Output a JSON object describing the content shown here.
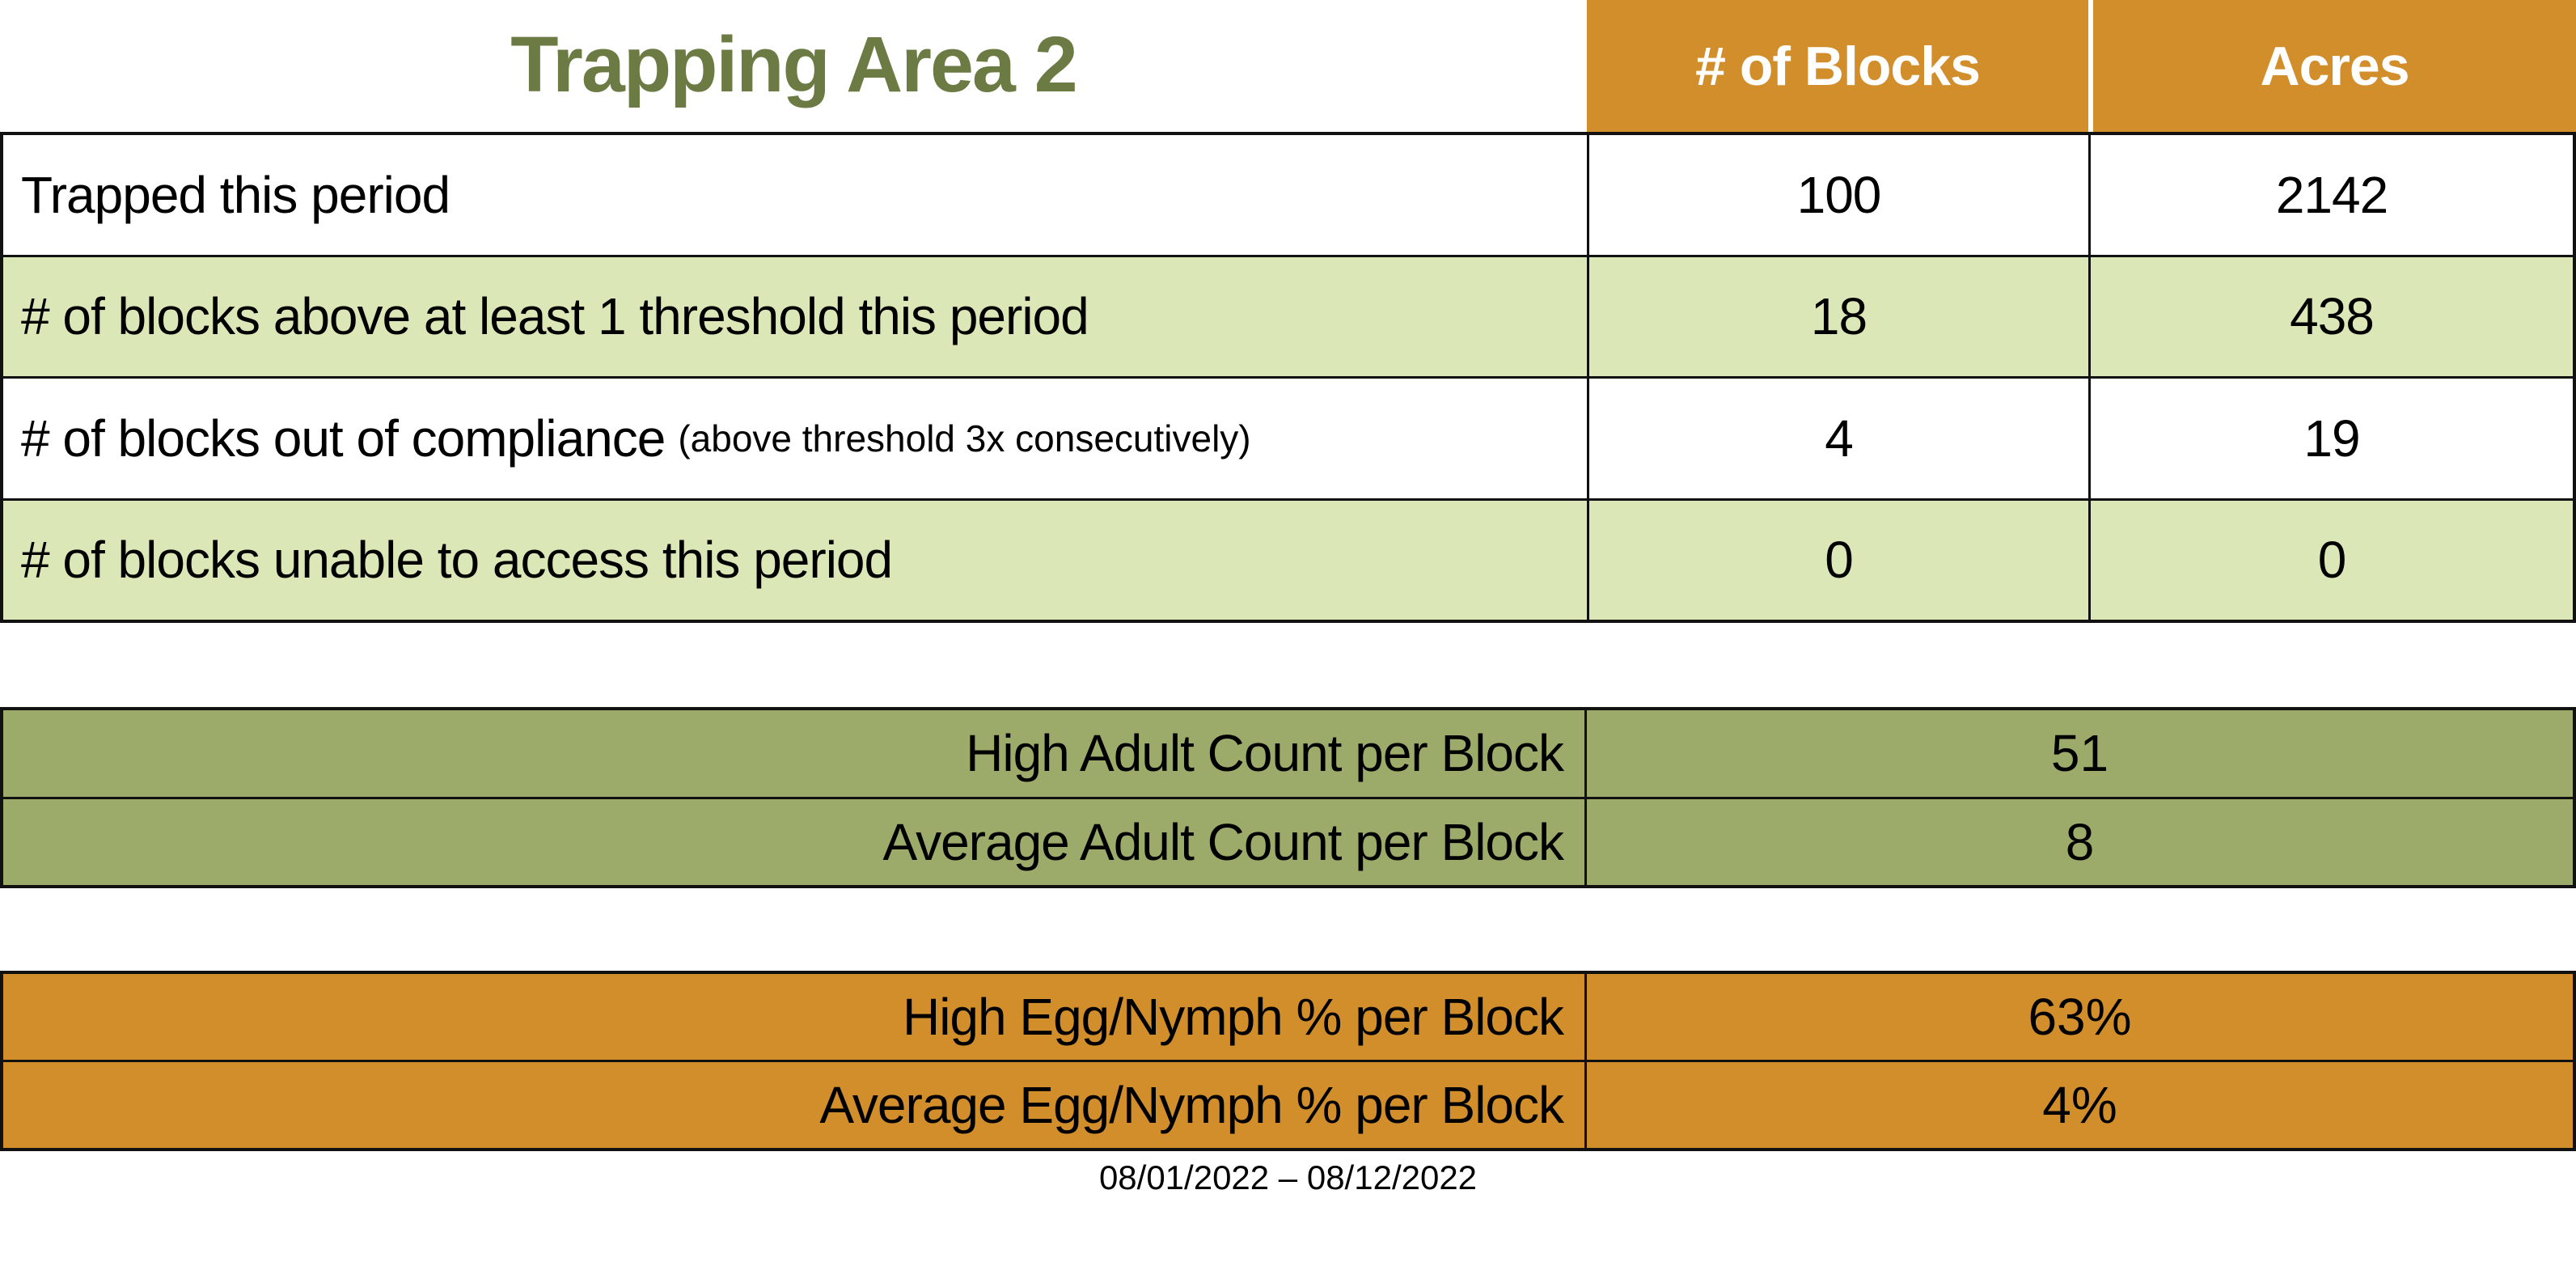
{
  "title": "Trapping Area 2",
  "header": {
    "col_blocks": "# of Blocks",
    "col_acres": "Acres"
  },
  "main_table": {
    "rows": [
      {
        "label": "Trapped this period",
        "note": "",
        "blocks": "100",
        "acres": "2142"
      },
      {
        "label": "# of blocks above at least 1 threshold this period",
        "note": "",
        "blocks": "18",
        "acres": "438"
      },
      {
        "label": "# of blocks out of compliance",
        "note": "(above threshold 3x consecutively)",
        "blocks": "4",
        "acres": "19"
      },
      {
        "label": "# of blocks unable to access this period",
        "note": "",
        "blocks": "0",
        "acres": "0"
      }
    ]
  },
  "adult_section": {
    "rows": [
      {
        "label": "High Adult Count per Block",
        "value": "51"
      },
      {
        "label": "Average Adult Count per Block",
        "value": "8"
      }
    ]
  },
  "egg_section": {
    "rows": [
      {
        "label": "High Egg/Nymph % per Block",
        "value": "63%"
      },
      {
        "label": "Average Egg/Nymph % per Block",
        "value": "4%"
      }
    ]
  },
  "footer": {
    "date_range": "08/01/2022 – 08/12/2022"
  },
  "colors": {
    "orange": "#D18E2B",
    "olive": "#9CAB69",
    "light_green": "#DBE7B6",
    "title_green": "#6C7A44",
    "border": "#111111"
  }
}
